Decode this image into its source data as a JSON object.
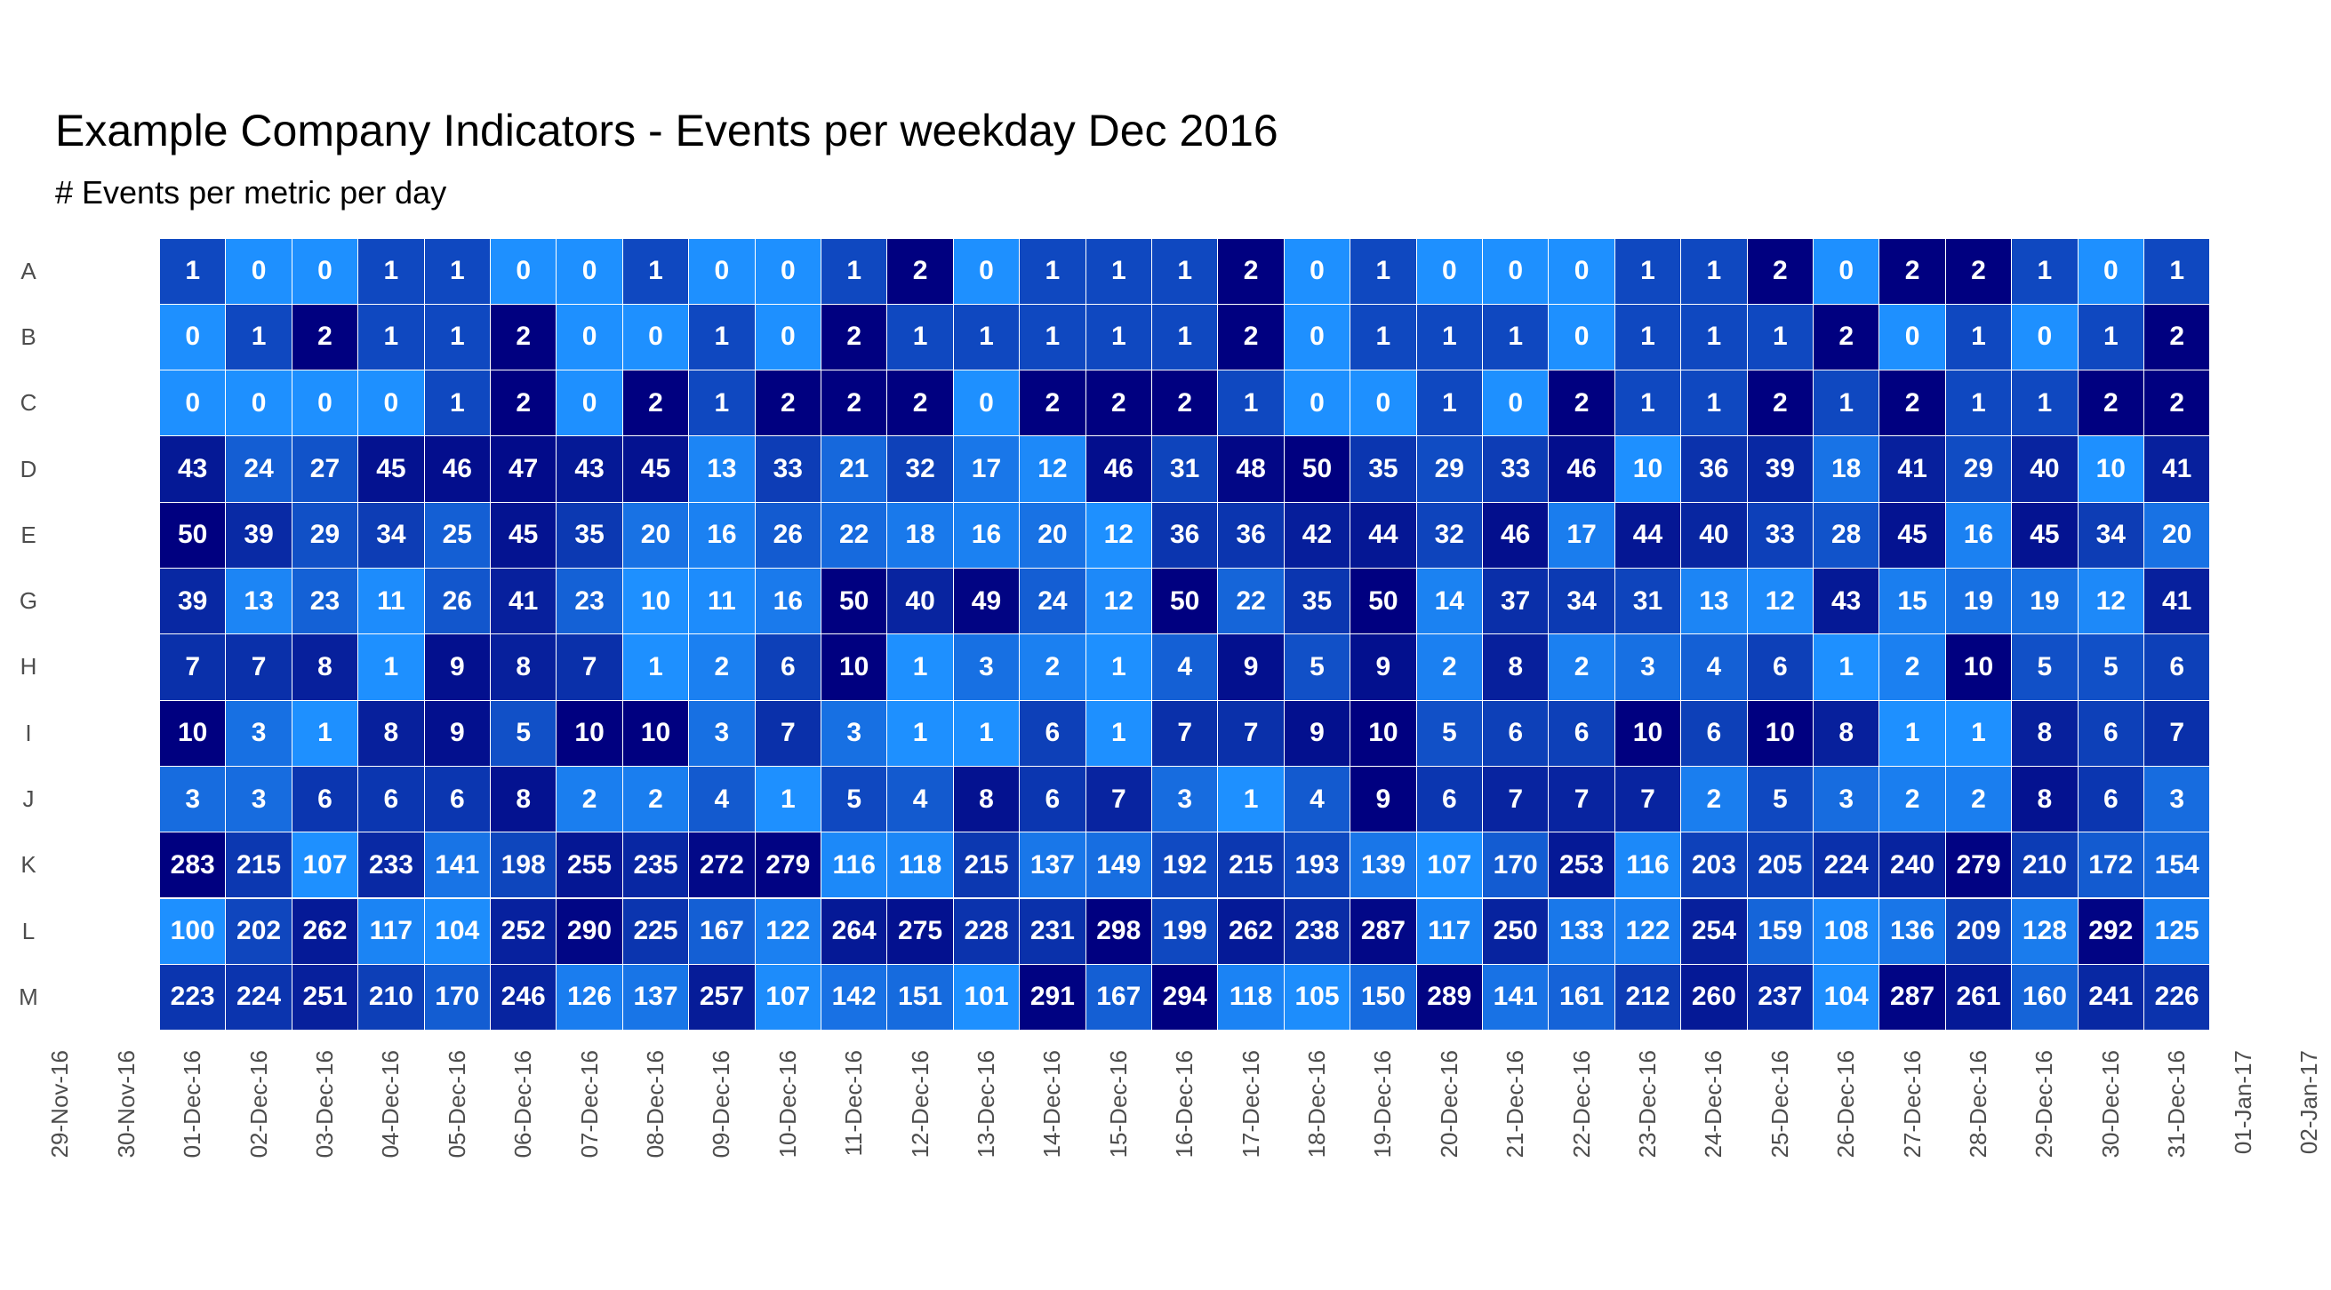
{
  "chart_data": {
    "type": "heatmap",
    "title": "Example Company Indicators - Events per weekday Dec 2016",
    "subtitle": "# Events per metric per day",
    "xlabel": "",
    "ylabel": "",
    "color_low": "#1E90FF",
    "color_high": "#000080",
    "color_scale": "per-row",
    "x_tick_labels": [
      "29-Nov-16",
      "30-Nov-16",
      "01-Dec-16",
      "02-Dec-16",
      "03-Dec-16",
      "04-Dec-16",
      "05-Dec-16",
      "06-Dec-16",
      "07-Dec-16",
      "08-Dec-16",
      "09-Dec-16",
      "10-Dec-16",
      "11-Dec-16",
      "12-Dec-16",
      "13-Dec-16",
      "14-Dec-16",
      "15-Dec-16",
      "16-Dec-16",
      "17-Dec-16",
      "18-Dec-16",
      "19-Dec-16",
      "20-Dec-16",
      "21-Dec-16",
      "22-Dec-16",
      "23-Dec-16",
      "24-Dec-16",
      "25-Dec-16",
      "26-Dec-16",
      "27-Dec-16",
      "28-Dec-16",
      "29-Dec-16",
      "30-Dec-16",
      "31-Dec-16",
      "01-Jan-17",
      "02-Jan-17"
    ],
    "x_first_cell": "01-Dec-16",
    "rows": [
      {
        "label": "A",
        "values": [
          1,
          0,
          0,
          1,
          1,
          0,
          0,
          1,
          0,
          0,
          1,
          2,
          0,
          1,
          1,
          1,
          2,
          0,
          1,
          0,
          0,
          0,
          1,
          1,
          2,
          0,
          2,
          2,
          1,
          0,
          1
        ]
      },
      {
        "label": "B",
        "values": [
          0,
          1,
          2,
          1,
          1,
          2,
          0,
          0,
          1,
          0,
          2,
          1,
          1,
          1,
          1,
          1,
          2,
          0,
          1,
          1,
          1,
          0,
          1,
          1,
          1,
          2,
          0,
          1,
          0,
          1,
          2
        ]
      },
      {
        "label": "C",
        "values": [
          0,
          0,
          0,
          0,
          1,
          2,
          0,
          2,
          1,
          2,
          2,
          2,
          0,
          2,
          2,
          2,
          1,
          0,
          0,
          1,
          0,
          2,
          1,
          1,
          2,
          1,
          2,
          1,
          1,
          2,
          2
        ]
      },
      {
        "label": "D",
        "values": [
          43,
          24,
          27,
          45,
          46,
          47,
          43,
          45,
          13,
          33,
          21,
          32,
          17,
          12,
          46,
          31,
          48,
          50,
          35,
          29,
          33,
          46,
          10,
          36,
          39,
          18,
          41,
          29,
          40,
          10,
          41
        ]
      },
      {
        "label": "E",
        "values": [
          50,
          39,
          29,
          34,
          25,
          45,
          35,
          20,
          16,
          26,
          22,
          18,
          16,
          20,
          12,
          36,
          36,
          42,
          44,
          32,
          46,
          17,
          44,
          40,
          33,
          28,
          45,
          16,
          45,
          34,
          20
        ]
      },
      {
        "label": "G",
        "values": [
          39,
          13,
          23,
          11,
          26,
          41,
          23,
          10,
          11,
          16,
          50,
          40,
          49,
          24,
          12,
          50,
          22,
          35,
          50,
          14,
          37,
          34,
          31,
          13,
          12,
          43,
          15,
          19,
          19,
          12,
          41
        ]
      },
      {
        "label": "H",
        "values": [
          7,
          7,
          8,
          1,
          9,
          8,
          7,
          1,
          2,
          6,
          10,
          1,
          3,
          2,
          1,
          4,
          9,
          5,
          9,
          2,
          8,
          2,
          3,
          4,
          6,
          1,
          2,
          10,
          5,
          5,
          6
        ]
      },
      {
        "label": "I",
        "values": [
          10,
          3,
          1,
          8,
          9,
          5,
          10,
          10,
          3,
          7,
          3,
          1,
          1,
          6,
          1,
          7,
          7,
          9,
          10,
          5,
          6,
          6,
          10,
          6,
          10,
          8,
          1,
          1,
          8,
          6,
          7
        ]
      },
      {
        "label": "J",
        "values": [
          3,
          3,
          6,
          6,
          6,
          8,
          2,
          2,
          4,
          1,
          5,
          4,
          8,
          6,
          7,
          3,
          1,
          4,
          9,
          6,
          7,
          7,
          7,
          2,
          5,
          3,
          2,
          2,
          8,
          6,
          3
        ]
      },
      {
        "label": "K",
        "values": [
          283,
          215,
          107,
          233,
          141,
          198,
          255,
          235,
          272,
          279,
          116,
          118,
          215,
          137,
          149,
          192,
          215,
          193,
          139,
          107,
          170,
          253,
          116,
          203,
          205,
          224,
          240,
          279,
          210,
          172,
          154
        ]
      },
      {
        "label": "L",
        "values": [
          100,
          202,
          262,
          117,
          104,
          252,
          290,
          225,
          167,
          122,
          264,
          275,
          228,
          231,
          298,
          199,
          262,
          238,
          287,
          117,
          250,
          133,
          122,
          254,
          159,
          108,
          136,
          209,
          128,
          292,
          125
        ]
      },
      {
        "label": "M",
        "values": [
          223,
          224,
          251,
          210,
          170,
          246,
          126,
          137,
          257,
          107,
          142,
          151,
          101,
          291,
          167,
          294,
          118,
          105,
          150,
          289,
          141,
          161,
          212,
          260,
          237,
          104,
          287,
          261,
          160,
          241,
          226
        ]
      }
    ]
  }
}
